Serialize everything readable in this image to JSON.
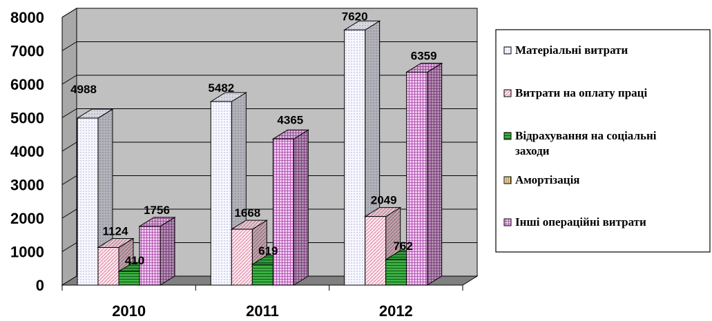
{
  "chart_data": {
    "type": "bar",
    "categories": [
      "2010",
      "2011",
      "2012"
    ],
    "series": [
      {
        "name": "Матеріальні витрати",
        "values": [
          4988,
          5482,
          7620
        ],
        "color": "#f4f4ff",
        "pattern": "dots"
      },
      {
        "name": "Витрати на оплату праці",
        "values": [
          1124,
          1668,
          2049
        ],
        "color": "#ffe0ea",
        "pattern": "diagonal"
      },
      {
        "name": "Відрахування на соціальні заходи",
        "values": [
          410,
          619,
          762
        ],
        "color": "#3cb043",
        "pattern": "hlines"
      },
      {
        "name": "Амортізація",
        "values": [
          0,
          0,
          0
        ],
        "color": "#c8a24a",
        "pattern": "vlines"
      },
      {
        "name": "Інші операційні витрати",
        "values": [
          1756,
          4365,
          6359
        ],
        "color": "#e8b0e8",
        "pattern": "grid"
      }
    ],
    "data_labels": [
      [
        "4988",
        "5482",
        "7620"
      ],
      [
        "1124",
        "1668",
        "2049"
      ],
      [
        "410",
        "619",
        "762"
      ],
      [
        "",
        "",
        ""
      ],
      [
        "1756",
        "4365",
        "6359"
      ]
    ],
    "legend_lines": [
      [
        "Матеріальні витрати"
      ],
      [
        "Витрати на оплату праці"
      ],
      [
        "Відрахування на соціальні",
        "заходи"
      ],
      [
        "Амортізація"
      ],
      [
        "Інші операційні витрати"
      ]
    ],
    "yticks": [
      "0",
      "1000",
      "2000",
      "3000",
      "4000",
      "5000",
      "6000",
      "7000",
      "8000"
    ],
    "ylim": [
      0,
      8000
    ],
    "title": "",
    "xlabel": "",
    "ylabel": "",
    "grid": true,
    "legend_position": "right",
    "wall_color": "#c0c0c0",
    "floor_color": "#808080",
    "three_d": true
  }
}
